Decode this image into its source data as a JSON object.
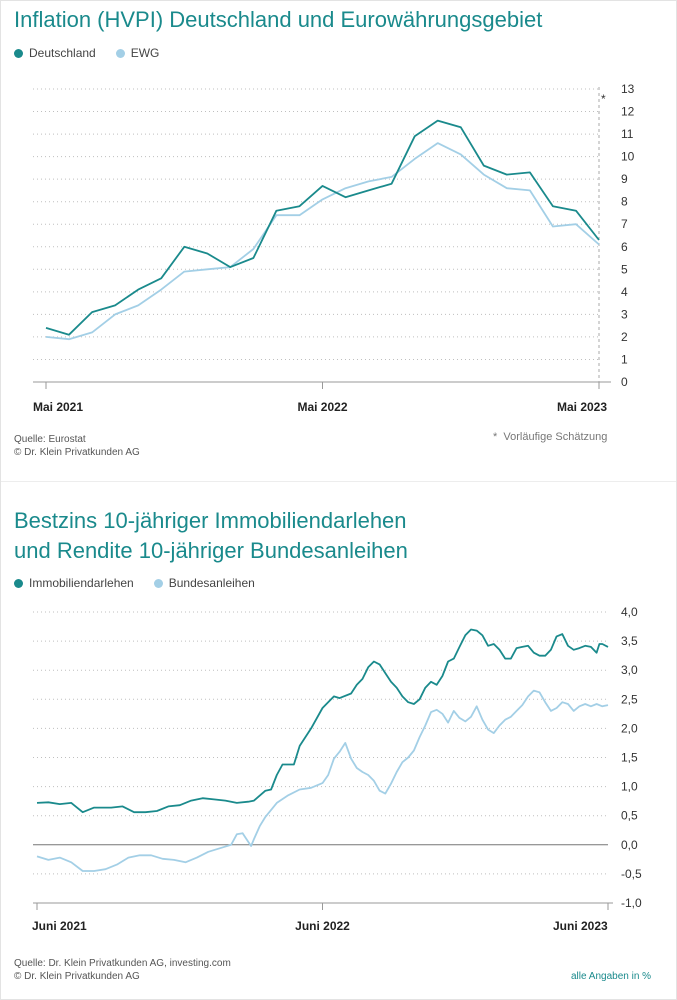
{
  "colors": {
    "primary": "#1a8a8c",
    "secondary": "#a3cfe6",
    "grid": "#bfbfbf"
  },
  "chart1": {
    "title": "Inflation (HVPI) Deutschland und Eurowährungsgebiet",
    "legend": [
      "Deutschland",
      "EWG"
    ],
    "source": "Quelle: Eurostat",
    "copyright": "© Dr. Klein Privatkunden AG",
    "note_symbol": "*",
    "note": "Vorläufige Schätzung",
    "footnote_marker": "*",
    "chart_data": {
      "type": "line",
      "x": [
        "2021-05",
        "2021-06",
        "2021-07",
        "2021-08",
        "2021-09",
        "2021-10",
        "2021-11",
        "2021-12",
        "2022-01",
        "2022-02",
        "2022-03",
        "2022-04",
        "2022-05",
        "2022-06",
        "2022-07",
        "2022-08",
        "2022-09",
        "2022-10",
        "2022-11",
        "2022-12",
        "2023-01",
        "2023-02",
        "2023-03",
        "2023-04",
        "2023-05"
      ],
      "x_ticks": [
        "Mai 2021",
        "Mai 2022",
        "Mai 2023"
      ],
      "y_ticks": [
        "0",
        "1",
        "2",
        "3",
        "4",
        "5",
        "6",
        "7",
        "8",
        "9",
        "10",
        "11",
        "12",
        "13"
      ],
      "ylim": [
        0,
        13
      ],
      "grid": "horizontal dotted",
      "series": [
        {
          "name": "Deutschland",
          "values": [
            2.4,
            2.1,
            3.1,
            3.4,
            4.1,
            4.6,
            6.0,
            5.7,
            5.1,
            5.5,
            7.6,
            7.8,
            8.7,
            8.2,
            8.5,
            8.8,
            10.9,
            11.6,
            11.3,
            9.6,
            9.2,
            9.3,
            7.8,
            7.6,
            6.3
          ]
        },
        {
          "name": "EWG",
          "values": [
            2.0,
            1.9,
            2.2,
            3.0,
            3.4,
            4.1,
            4.9,
            5.0,
            5.1,
            5.9,
            7.4,
            7.4,
            8.1,
            8.6,
            8.9,
            9.1,
            9.9,
            10.6,
            10.1,
            9.2,
            8.6,
            8.5,
            6.9,
            7.0,
            6.1
          ]
        }
      ]
    }
  },
  "chart2": {
    "title_line1": "Bestzins 10-jähriger Immobiliendarlehen",
    "title_line2": "und Rendite 10-jähriger Bundesanleihen",
    "legend": [
      "Immobiliendarlehen",
      "Bundesanleihen"
    ],
    "source": "Quelle: Dr. Klein Privatkunden AG, investing.com",
    "copyright": "© Dr. Klein Privatkunden AG",
    "unit_note": "alle Angaben in %",
    "chart_data": {
      "type": "line",
      "x_range": [
        "2021-06",
        "2023-06"
      ],
      "x_ticks": [
        "Juni 2021",
        "Juni 2022",
        "Juni 2023"
      ],
      "y_ticks": [
        "4,0",
        "3,5",
        "3,0",
        "2,5",
        "2,0",
        "1,5",
        "1,0",
        "0,5",
        "0,0",
        "-0,5",
        "-1,0"
      ],
      "ylim": [
        -1.0,
        4.0
      ],
      "grid": "horizontal dotted, solid zero line",
      "series": [
        {
          "name": "Immobiliendarlehen",
          "points": [
            [
              0,
              0.72
            ],
            [
              0.02,
              0.73
            ],
            [
              0.04,
              0.7
            ],
            [
              0.06,
              0.72
            ],
            [
              0.08,
              0.56
            ],
            [
              0.1,
              0.64
            ],
            [
              0.13,
              0.64
            ],
            [
              0.15,
              0.66
            ],
            [
              0.17,
              0.56
            ],
            [
              0.19,
              0.56
            ],
            [
              0.21,
              0.58
            ],
            [
              0.23,
              0.66
            ],
            [
              0.25,
              0.68
            ],
            [
              0.27,
              0.76
            ],
            [
              0.29,
              0.8
            ],
            [
              0.31,
              0.78
            ],
            [
              0.33,
              0.76
            ],
            [
              0.35,
              0.72
            ],
            [
              0.37,
              0.74
            ],
            [
              0.38,
              0.76
            ],
            [
              0.4,
              0.93
            ],
            [
              0.41,
              0.95
            ],
            [
              0.42,
              1.2
            ],
            [
              0.43,
              1.38
            ],
            [
              0.45,
              1.38
            ],
            [
              0.46,
              1.7
            ],
            [
              0.48,
              2.0
            ],
            [
              0.5,
              2.35
            ],
            [
              0.52,
              2.55
            ],
            [
              0.53,
              2.52
            ],
            [
              0.55,
              2.6
            ],
            [
              0.56,
              2.75
            ],
            [
              0.57,
              2.85
            ],
            [
              0.58,
              3.05
            ],
            [
              0.59,
              3.15
            ],
            [
              0.6,
              3.1
            ],
            [
              0.61,
              2.95
            ],
            [
              0.62,
              2.8
            ],
            [
              0.63,
              2.7
            ],
            [
              0.64,
              2.55
            ],
            [
              0.65,
              2.45
            ],
            [
              0.66,
              2.42
            ],
            [
              0.67,
              2.5
            ],
            [
              0.68,
              2.7
            ],
            [
              0.69,
              2.8
            ],
            [
              0.7,
              2.75
            ],
            [
              0.71,
              2.9
            ],
            [
              0.72,
              3.15
            ],
            [
              0.73,
              3.2
            ],
            [
              0.74,
              3.4
            ],
            [
              0.75,
              3.6
            ],
            [
              0.76,
              3.7
            ],
            [
              0.77,
              3.68
            ],
            [
              0.78,
              3.6
            ],
            [
              0.79,
              3.42
            ],
            [
              0.8,
              3.45
            ],
            [
              0.81,
              3.35
            ],
            [
              0.82,
              3.2
            ],
            [
              0.83,
              3.2
            ],
            [
              0.84,
              3.38
            ],
            [
              0.85,
              3.4
            ],
            [
              0.86,
              3.42
            ],
            [
              0.87,
              3.3
            ],
            [
              0.88,
              3.25
            ],
            [
              0.89,
              3.25
            ],
            [
              0.9,
              3.35
            ],
            [
              0.91,
              3.58
            ],
            [
              0.92,
              3.62
            ],
            [
              0.93,
              3.42
            ],
            [
              0.94,
              3.35
            ],
            [
              0.95,
              3.38
            ],
            [
              0.96,
              3.42
            ],
            [
              0.97,
              3.4
            ],
            [
              0.98,
              3.3
            ],
            [
              0.985,
              3.45
            ],
            [
              0.99,
              3.45
            ],
            [
              1.0,
              3.4
            ]
          ]
        },
        {
          "name": "Bundesanleihen",
          "points": [
            [
              0,
              -0.2
            ],
            [
              0.02,
              -0.26
            ],
            [
              0.04,
              -0.22
            ],
            [
              0.06,
              -0.3
            ],
            [
              0.08,
              -0.45
            ],
            [
              0.1,
              -0.45
            ],
            [
              0.12,
              -0.42
            ],
            [
              0.14,
              -0.34
            ],
            [
              0.16,
              -0.22
            ],
            [
              0.18,
              -0.18
            ],
            [
              0.2,
              -0.18
            ],
            [
              0.22,
              -0.24
            ],
            [
              0.24,
              -0.26
            ],
            [
              0.26,
              -0.3
            ],
            [
              0.28,
              -0.22
            ],
            [
              0.3,
              -0.12
            ],
            [
              0.32,
              -0.06
            ],
            [
              0.34,
              -0.0
            ],
            [
              0.35,
              0.18
            ],
            [
              0.36,
              0.2
            ],
            [
              0.37,
              0.05
            ],
            [
              0.375,
              -0.02
            ],
            [
              0.38,
              0.1
            ],
            [
              0.39,
              0.32
            ],
            [
              0.4,
              0.48
            ],
            [
              0.42,
              0.72
            ],
            [
              0.44,
              0.85
            ],
            [
              0.46,
              0.95
            ],
            [
              0.48,
              0.98
            ],
            [
              0.5,
              1.06
            ],
            [
              0.51,
              1.2
            ],
            [
              0.52,
              1.48
            ],
            [
              0.53,
              1.6
            ],
            [
              0.54,
              1.75
            ],
            [
              0.55,
              1.48
            ],
            [
              0.56,
              1.32
            ],
            [
              0.57,
              1.25
            ],
            [
              0.58,
              1.2
            ],
            [
              0.59,
              1.1
            ],
            [
              0.6,
              0.93
            ],
            [
              0.61,
              0.88
            ],
            [
              0.62,
              1.05
            ],
            [
              0.63,
              1.25
            ],
            [
              0.64,
              1.42
            ],
            [
              0.65,
              1.5
            ],
            [
              0.66,
              1.62
            ],
            [
              0.67,
              1.85
            ],
            [
              0.68,
              2.05
            ],
            [
              0.69,
              2.28
            ],
            [
              0.7,
              2.32
            ],
            [
              0.71,
              2.25
            ],
            [
              0.72,
              2.1
            ],
            [
              0.73,
              2.3
            ],
            [
              0.74,
              2.18
            ],
            [
              0.75,
              2.12
            ],
            [
              0.76,
              2.2
            ],
            [
              0.77,
              2.38
            ],
            [
              0.78,
              2.15
            ],
            [
              0.79,
              1.98
            ],
            [
              0.8,
              1.92
            ],
            [
              0.81,
              2.05
            ],
            [
              0.82,
              2.15
            ],
            [
              0.83,
              2.2
            ],
            [
              0.84,
              2.3
            ],
            [
              0.85,
              2.4
            ],
            [
              0.86,
              2.55
            ],
            [
              0.87,
              2.65
            ],
            [
              0.88,
              2.62
            ],
            [
              0.89,
              2.45
            ],
            [
              0.9,
              2.3
            ],
            [
              0.91,
              2.35
            ],
            [
              0.92,
              2.45
            ],
            [
              0.93,
              2.42
            ],
            [
              0.94,
              2.3
            ],
            [
              0.95,
              2.38
            ],
            [
              0.96,
              2.42
            ],
            [
              0.97,
              2.38
            ],
            [
              0.98,
              2.42
            ],
            [
              0.99,
              2.38
            ],
            [
              1.0,
              2.4
            ]
          ]
        }
      ]
    }
  }
}
